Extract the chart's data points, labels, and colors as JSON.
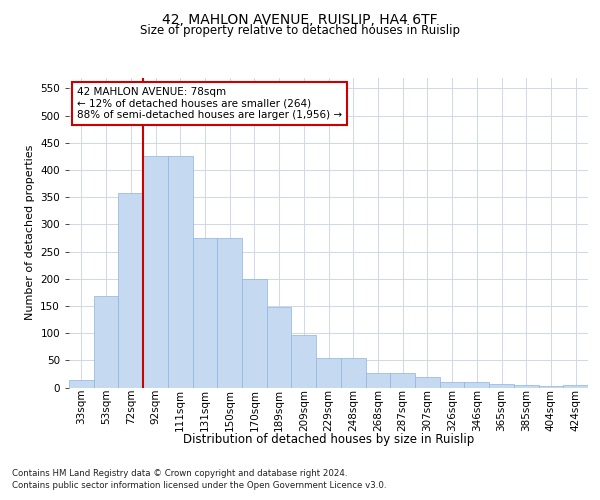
{
  "title1": "42, MAHLON AVENUE, RUISLIP, HA4 6TF",
  "title2": "Size of property relative to detached houses in Ruislip",
  "xlabel": "Distribution of detached houses by size in Ruislip",
  "ylabel": "Number of detached properties",
  "categories": [
    "33sqm",
    "53sqm",
    "72sqm",
    "92sqm",
    "111sqm",
    "131sqm",
    "150sqm",
    "170sqm",
    "189sqm",
    "209sqm",
    "229sqm",
    "248sqm",
    "268sqm",
    "287sqm",
    "307sqm",
    "326sqm",
    "346sqm",
    "365sqm",
    "385sqm",
    "404sqm",
    "424sqm"
  ],
  "bar_values": [
    13,
    168,
    357,
    425,
    425,
    275,
    275,
    200,
    148,
    97,
    55,
    55,
    27,
    27,
    20,
    11,
    11,
    7,
    5,
    3,
    4
  ],
  "bar_color": "#c5d9f1",
  "bar_edge_color": "#8db4e2",
  "vline_x_index": 2,
  "vline_color": "#cc0000",
  "annotation_text": "42 MAHLON AVENUE: 78sqm\n← 12% of detached houses are smaller (264)\n88% of semi-detached houses are larger (1,956) →",
  "annotation_box_color": "#ffffff",
  "annotation_box_edge_color": "#cc0000",
  "ylim": [
    0,
    570
  ],
  "yticks": [
    0,
    50,
    100,
    150,
    200,
    250,
    300,
    350,
    400,
    450,
    500,
    550
  ],
  "footer1": "Contains HM Land Registry data © Crown copyright and database right 2024.",
  "footer2": "Contains public sector information licensed under the Open Government Licence v3.0.",
  "bg_color": "#ffffff",
  "grid_color": "#d0d8e8",
  "title1_fontsize": 10,
  "title2_fontsize": 8.5,
  "ylabel_fontsize": 8,
  "xlabel_fontsize": 8.5,
  "tick_fontsize": 7.5,
  "annot_fontsize": 7.5,
  "footer_fontsize": 6.2
}
